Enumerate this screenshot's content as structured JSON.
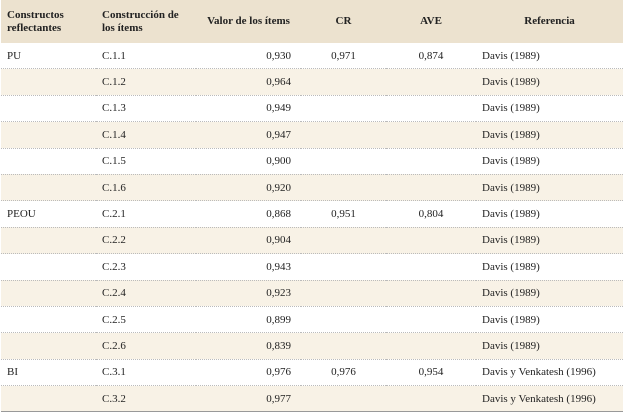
{
  "table": {
    "header": [
      "Constructos reflectantes",
      "Construcción de los ítems",
      "Valor de los ítems",
      "CR",
      "AVE",
      "Referencia"
    ],
    "rows": [
      {
        "construct": "PU",
        "item": "C.1.1",
        "value": "0,930",
        "cr": "0,971",
        "ave": "0,874",
        "reference": "Davis (1989)"
      },
      {
        "item": "C.1.2",
        "value": "0,964",
        "reference": "Davis (1989)"
      },
      {
        "item": "C.1.3",
        "value": "0,949",
        "reference": "Davis (1989)"
      },
      {
        "item": "C.1.4",
        "value": "0,947",
        "reference": "Davis (1989)"
      },
      {
        "item": "C.1.5",
        "value": "0,900",
        "reference": "Davis (1989)"
      },
      {
        "item": "C.1.6",
        "value": "0,920",
        "reference": "Davis (1989)"
      },
      {
        "construct": "PEOU",
        "item": "C.2.1",
        "value": "0,868",
        "cr": "0,951",
        "ave": "0,804",
        "reference": "Davis (1989)"
      },
      {
        "item": "C.2.2",
        "value": "0,904",
        "reference": "Davis (1989)"
      },
      {
        "item": "C.2.3",
        "value": "0,943",
        "reference": "Davis (1989)"
      },
      {
        "item": "C.2.4",
        "value": "0,923",
        "reference": "Davis (1989)"
      },
      {
        "item": "C.2.5",
        "value": "0,899",
        "reference": "Davis (1989)"
      },
      {
        "item": "C.2.6",
        "value": "0,839",
        "reference": "Davis (1989)"
      },
      {
        "construct": "BI",
        "item": "C.3.1",
        "value": "0,976",
        "cr": "0,976",
        "ave": "0,954",
        "reference": "Davis y Venkatesh (1996)"
      },
      {
        "item": "C.3.2",
        "value": "0,977",
        "reference": "Davis y Venkatesh (1996)"
      }
    ]
  }
}
